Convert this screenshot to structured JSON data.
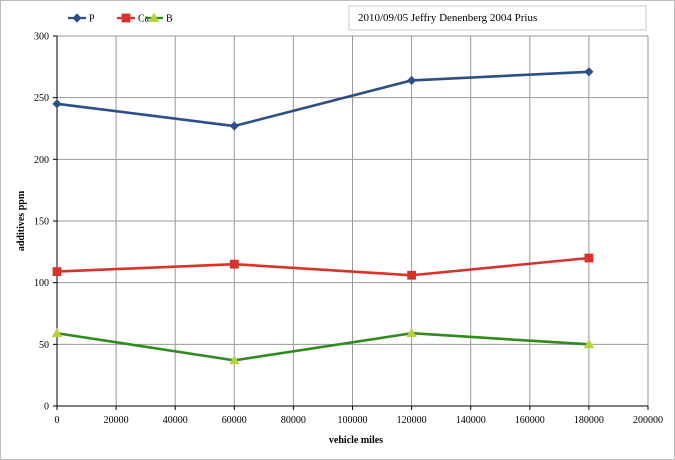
{
  "chart_data": {
    "type": "line",
    "title": "2010/09/05 Jeffry Denenberg 2004 Prius",
    "xlabel": "vehicle miles",
    "ylabel": "additives ppm",
    "xlim": [
      0,
      200000
    ],
    "ylim": [
      0,
      300
    ],
    "x_ticks": [
      0,
      20000,
      40000,
      60000,
      80000,
      100000,
      120000,
      140000,
      160000,
      180000,
      200000
    ],
    "y_ticks": [
      0,
      50,
      100,
      150,
      200,
      250,
      300
    ],
    "grid": true,
    "legend_position": "top-left",
    "series": [
      {
        "name": "P",
        "color": "#2c4f86",
        "marker": "diamond",
        "points": [
          [
            0,
            245
          ],
          [
            60000,
            227
          ],
          [
            120000,
            264
          ],
          [
            180000,
            271
          ]
        ]
      },
      {
        "name": "Ca",
        "color": "#d9322c",
        "marker": "square",
        "points": [
          [
            0,
            109
          ],
          [
            60000,
            115
          ],
          [
            120000,
            106
          ],
          [
            180000,
            120
          ]
        ]
      },
      {
        "name": "B",
        "color": "#2f8a1f",
        "marker": "triangle",
        "marker_color": "#b6d23a",
        "points": [
          [
            0,
            59
          ],
          [
            60000,
            37
          ],
          [
            120000,
            59
          ],
          [
            180000,
            50
          ]
        ]
      }
    ]
  }
}
